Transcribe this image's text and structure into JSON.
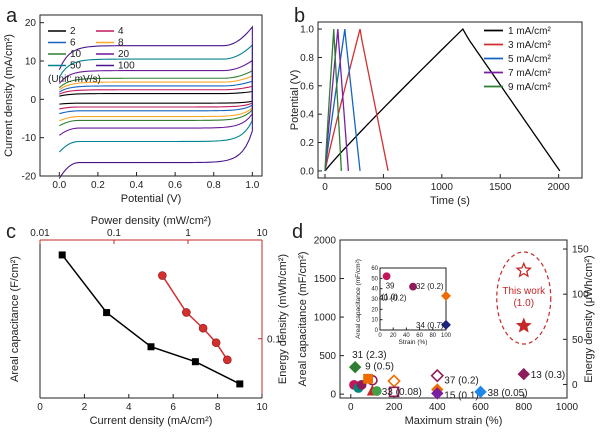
{
  "chart_data": [
    {
      "panel": "a",
      "type": "line",
      "title": "",
      "xlabel": "Potential (V)",
      "ylabel": "Current density (mA/cm²)",
      "xlim": [
        -0.1,
        1.05
      ],
      "ylim": [
        -20,
        22
      ],
      "xticks": [
        "0.0",
        "0.2",
        "0.4",
        "0.6",
        "0.8",
        "1.0"
      ],
      "xtick_values": [
        0,
        0.2,
        0.4,
        0.6,
        0.8,
        1.0
      ],
      "yticks": [
        "-20",
        "-10",
        "0",
        "10",
        "20"
      ],
      "ytick_values": [
        -20,
        -10,
        0,
        10,
        20
      ],
      "legend_note": "(Unit: mV/s)",
      "series": [
        {
          "name": "2",
          "color": "#000000",
          "top": 1.5,
          "bottom": -1.0
        },
        {
          "name": "4",
          "color": "#c2185b",
          "top": 2.5,
          "bottom": -2.0
        },
        {
          "name": "6",
          "color": "#1565c0",
          "top": 3.5,
          "bottom": -3.0
        },
        {
          "name": "8",
          "color": "#f9a825",
          "top": 4.5,
          "bottom": -4.5
        },
        {
          "name": "10",
          "color": "#2e7d32",
          "top": 5.5,
          "bottom": -5.5
        },
        {
          "name": "20",
          "color": "#6a1b9a",
          "top": 7.5,
          "bottom": -7.5
        },
        {
          "name": "50",
          "color": "#00838f",
          "top": 10.5,
          "bottom": -11.0
        },
        {
          "name": "100",
          "color": "#4a148c",
          "top": 14.0,
          "bottom": -16.5
        }
      ]
    },
    {
      "panel": "b",
      "type": "line",
      "title": "",
      "xlabel": "Time (s)",
      "ylabel": "Potential (V)",
      "xlim": [
        -60,
        2200
      ],
      "ylim": [
        -0.05,
        1.05
      ],
      "xticks": [
        "0",
        "500",
        "1000",
        "1500",
        "2000"
      ],
      "xtick_values": [
        0,
        500,
        1000,
        1500,
        2000
      ],
      "yticks": [
        "0.0",
        "0.2",
        "0.4",
        "0.6",
        "0.8",
        "1.0"
      ],
      "ytick_values": [
        0,
        0.2,
        0.4,
        0.6,
        0.8,
        1.0
      ],
      "series": [
        {
          "name": "1 mA/cm²",
          "color": "#000000",
          "charge_end": 1180,
          "discharge_end": 2010
        },
        {
          "name": "3 mA/cm²",
          "color": "#d32f2f",
          "charge_end": 300,
          "discharge_end": 540
        },
        {
          "name": "5 mA/cm²",
          "color": "#1565c0",
          "charge_end": 170,
          "discharge_end": 300
        },
        {
          "name": "7 mA/cm²",
          "color": "#7b1fa2",
          "charge_end": 110,
          "discharge_end": 200
        },
        {
          "name": "9 mA/cm²",
          "color": "#2e7d32",
          "charge_end": 75,
          "discharge_end": 140
        }
      ]
    },
    {
      "panel": "c",
      "type": "line",
      "title": "",
      "xlabel": "Current density (mA/cm²)",
      "ylabel": "Areal capacitance (F/cm²)",
      "xlim": [
        0,
        10
      ],
      "ylim": [
        0.55,
        0.92
      ],
      "xticks": [
        "0",
        "2",
        "4",
        "6",
        "8",
        "10"
      ],
      "xtick_values": [
        0,
        2,
        4,
        6,
        8,
        10
      ],
      "yticks": [],
      "top_axis_label": "Power density (mW/cm²)",
      "top_ticks": [
        "0.01",
        "0.1",
        "1",
        "10"
      ],
      "top_tick_values": [
        0.01,
        0.1,
        1,
        10
      ],
      "right_axis_label": "Energy density (mWh/cm²)",
      "right_ticks": [
        "0.1"
      ],
      "right_tick_values": [
        0.1
      ],
      "capacitance": {
        "x": [
          1,
          3,
          5,
          7,
          9
        ],
        "y": [
          0.885,
          0.75,
          0.67,
          0.635,
          0.583
        ],
        "color": "#000000"
      },
      "ragone": {
        "power": [
          0.45,
          0.95,
          1.6,
          2.4,
          3.4
        ],
        "energy": [
          0.148,
          0.12,
          0.108,
          0.097,
          0.084
        ],
        "color": "#d32f2f"
      }
    },
    {
      "panel": "d",
      "type": "scatter",
      "title": "",
      "xlabel": "Maximum strain (%)",
      "ylabel": "Areal capacitance (mF/cm²)",
      "right_axis_label": "Energy density (μWh/cm²)",
      "xlim": [
        -50,
        1000
      ],
      "ylim": [
        -50,
        2000
      ],
      "xticks": [
        "0",
        "200",
        "400",
        "600",
        "800",
        "1000"
      ],
      "xtick_values": [
        0,
        200,
        400,
        600,
        800,
        1000
      ],
      "yticks": [
        "0",
        "500",
        "1000",
        "1500",
        "2000"
      ],
      "ytick_values": [
        0,
        500,
        1000,
        1500,
        2000
      ],
      "right_ticks": [
        "0",
        "50",
        "100",
        "150"
      ],
      "right_tick_values": [
        0,
        50,
        100,
        150
      ],
      "this_work": {
        "label": "This work",
        "value": "(1.0)",
        "strain": 800,
        "capacitance": 1605,
        "energy": 65,
        "color": "#c62828"
      },
      "points": [
        {
          "label": "31 (2.3)",
          "strain": 20,
          "capacitance": 350,
          "shape": "diamond",
          "color": "#2e7d32"
        },
        {
          "label": "9 (0.5)",
          "strain": 80,
          "capacitance": 200,
          "shape": "square",
          "color": "#ef6c00"
        },
        {
          "label": "33 (0.08)",
          "strain": 120,
          "capacitance": 40,
          "shape": "circle",
          "color": "#43a047"
        },
        {
          "label": "37 (0.2)",
          "strain": 400,
          "capacitance": 60,
          "shape": "diamond",
          "color": "#ef6c00"
        },
        {
          "label": "15 (0.1)",
          "strain": 400,
          "capacitance": 10,
          "shape": "diamond",
          "color": "#7b1fa2"
        },
        {
          "label": "38 (0.05)",
          "strain": 600,
          "capacitance": 30,
          "shape": "diamond",
          "color": "#1e88e5"
        },
        {
          "label": "13 (0.3)",
          "strain": 800,
          "capacitance": 260,
          "shape": "diamond",
          "color": "#8e1b5a"
        }
      ],
      "unlabeled_points": [
        {
          "strain": 15,
          "capacitance": 120,
          "shape": "circle",
          "color": "#c2185b"
        },
        {
          "strain": 35,
          "capacitance": 80,
          "shape": "circle",
          "color": "#00897b"
        },
        {
          "strain": 50,
          "capacitance": 120,
          "shape": "circle",
          "color": "#8e1b5a"
        },
        {
          "strain": 100,
          "capacitance": 180,
          "shape": "circle-open",
          "color": "#8e1b5a"
        },
        {
          "strain": 100,
          "capacitance": 40,
          "shape": "triangle",
          "color": "#c62828"
        },
        {
          "strain": 200,
          "capacitance": 170,
          "shape": "diamond-open",
          "color": "#ef6c00"
        },
        {
          "strain": 200,
          "capacitance": 30,
          "shape": "square-open",
          "color": "#8e1b5a"
        },
        {
          "strain": 400,
          "capacitance": 240,
          "shape": "diamond-open",
          "color": "#8e1b5a"
        }
      ],
      "inset": {
        "xlabel": "Strain (%)",
        "ylabel": "Areal capacitance (mF/cm²)",
        "xlim": [
          0,
          100
        ],
        "ylim": [
          0,
          60
        ],
        "xticks": [
          "0",
          "20",
          "40",
          "60",
          "80",
          "100"
        ],
        "xtick_values": [
          0,
          20,
          40,
          60,
          80,
          100
        ],
        "yticks": [
          "0",
          "10",
          "20",
          "30",
          "40",
          "50",
          "60"
        ],
        "ytick_values": [
          0,
          10,
          20,
          30,
          40,
          50,
          60
        ],
        "points": [
          {
            "label": "39",
            "sub": "(1.0)",
            "strain": 10,
            "capacitance": 52,
            "shape": "circle",
            "color": "#c2185b"
          },
          {
            "label": "40 (0.2)",
            "sub": "",
            "strain": 50,
            "capacitance": 42,
            "shape": "circle",
            "color": "#8e1b5a"
          },
          {
            "label": "32 (0.2)",
            "sub": "",
            "strain": 100,
            "capacitance": 33,
            "shape": "diamond",
            "color": "#ef6c00"
          },
          {
            "label": "34 (0.7)",
            "sub": "",
            "strain": 100,
            "capacitance": 5,
            "shape": "diamond",
            "color": "#1a237e"
          }
        ]
      }
    }
  ],
  "panel_letters": [
    "a",
    "b",
    "c",
    "d"
  ]
}
